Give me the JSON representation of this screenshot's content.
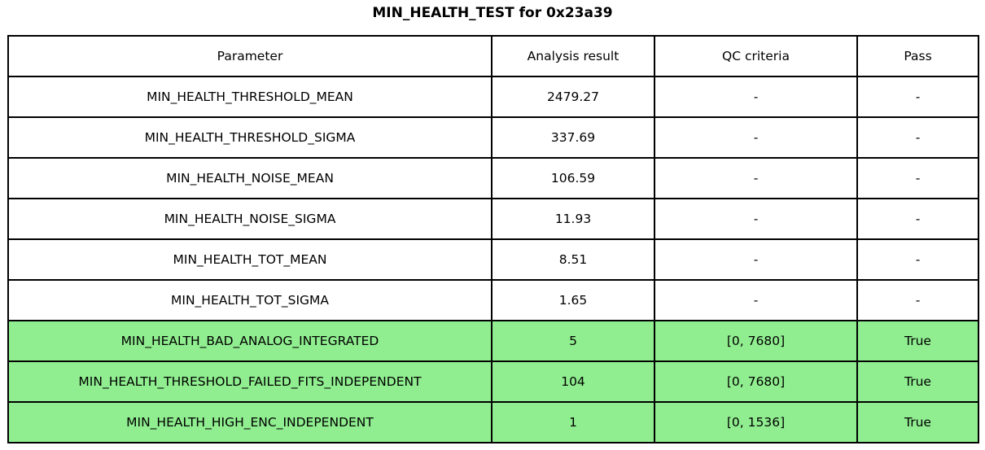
{
  "title": "MIN_HEALTH_TEST for 0x23a39",
  "chart_data": {
    "type": "table",
    "title": "MIN_HEALTH_TEST for 0x23a39",
    "columns": [
      "Parameter",
      "Analysis result",
      "QC criteria",
      "Pass"
    ],
    "rows": [
      {
        "parameter": "MIN_HEALTH_THRESHOLD_MEAN",
        "result": "2479.27",
        "qc": "-",
        "pass": "-",
        "highlight": false
      },
      {
        "parameter": "MIN_HEALTH_THRESHOLD_SIGMA",
        "result": "337.69",
        "qc": "-",
        "pass": "-",
        "highlight": false
      },
      {
        "parameter": "MIN_HEALTH_NOISE_MEAN",
        "result": "106.59",
        "qc": "-",
        "pass": "-",
        "highlight": false
      },
      {
        "parameter": "MIN_HEALTH_NOISE_SIGMA",
        "result": "11.93",
        "qc": "-",
        "pass": "-",
        "highlight": false
      },
      {
        "parameter": "MIN_HEALTH_TOT_MEAN",
        "result": "8.51",
        "qc": "-",
        "pass": "-",
        "highlight": false
      },
      {
        "parameter": "MIN_HEALTH_TOT_SIGMA",
        "result": "1.65",
        "qc": "-",
        "pass": "-",
        "highlight": false
      },
      {
        "parameter": "MIN_HEALTH_BAD_ANALOG_INTEGRATED",
        "result": "5",
        "qc": "[0, 7680]",
        "pass": "True",
        "highlight": true
      },
      {
        "parameter": "MIN_HEALTH_THRESHOLD_FAILED_FITS_INDEPENDENT",
        "result": "104",
        "qc": "[0, 7680]",
        "pass": "True",
        "highlight": true
      },
      {
        "parameter": "MIN_HEALTH_HIGH_ENC_INDEPENDENT",
        "result": "1",
        "qc": "[0, 1536]",
        "pass": "True",
        "highlight": true
      }
    ],
    "colors": {
      "pass_row_bg": "#90ee90",
      "border": "#000000",
      "text": "#000000",
      "background": "#ffffff"
    }
  }
}
